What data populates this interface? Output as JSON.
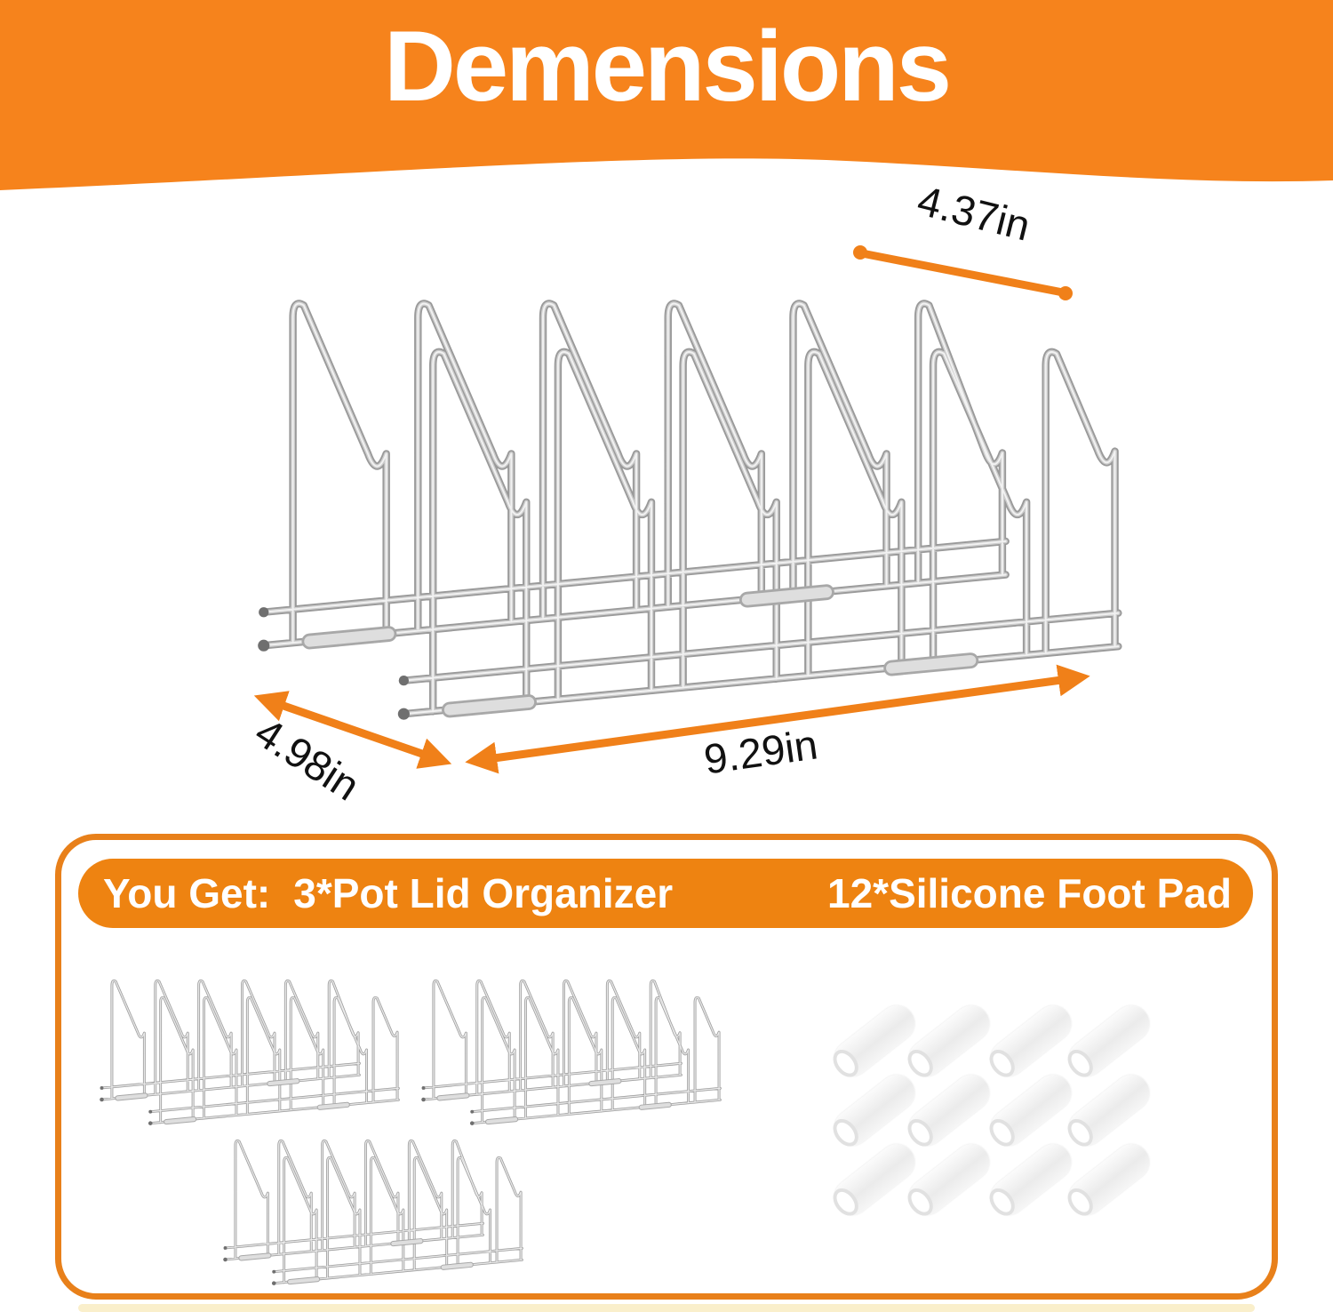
{
  "header": {
    "title": "Demensions"
  },
  "diagram": {
    "dimensions": {
      "top_depth": "4.37in",
      "depth": "4.98in",
      "width": "9.29in"
    }
  },
  "kit_box": {
    "banner": {
      "you_get": "You Get:",
      "organizers": "3*Pot Lid Organizer",
      "foot_pads": "12*Silicone Foot Pad"
    },
    "organizer_count": 3,
    "foot_pad_count": 12
  },
  "colors": {
    "header_orange": "#F6831C",
    "pill_orange": "#EE8311",
    "border_orange": "#E8801A",
    "arrow_orange": "#F08019",
    "footer_cream": "#FAEFCB",
    "wire_gray": "#9A9A9A"
  }
}
